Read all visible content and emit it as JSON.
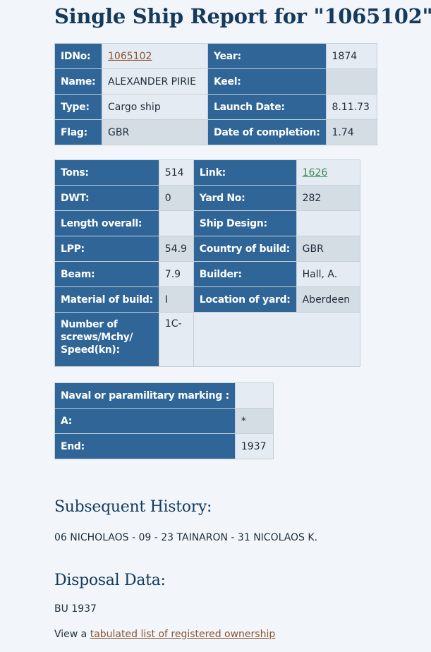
{
  "title": "Single Ship Report for \"1065102\"",
  "table1": {
    "idno_label": "IDNo:",
    "idno_value": "1065102",
    "year_label": "Year:",
    "year_value": "1874",
    "name_label": "Name:",
    "name_value": "ALEXANDER PIRIE",
    "keel_label": "Keel:",
    "keel_value": "",
    "type_label": "Type:",
    "type_value": "Cargo ship",
    "launch_label": "Launch Date:",
    "launch_value": "8.11.73",
    "flag_label": "Flag:",
    "flag_value": "GBR",
    "completion_label": "Date of completion:",
    "completion_value": "1.74"
  },
  "table2": {
    "tons_label": "Tons:",
    "tons_value": "514",
    "link_label": "Link:",
    "link_value": "1626",
    "dwt_label": "DWT:",
    "dwt_value": "0",
    "yard_label": "Yard No:",
    "yard_value": "282",
    "length_label": "Length overall:",
    "length_value": "",
    "design_label": "Ship Design:",
    "design_value": "",
    "lpp_label": "LPP:",
    "lpp_value": "54.9",
    "country_label": "Country of build:",
    "country_value": "GBR",
    "beam_label": "Beam:",
    "beam_value": "7.9",
    "builder_label": "Builder:",
    "builder_value": "Hall, A.",
    "material_label": "Material of build:",
    "material_value": "I",
    "location_label": "Location of yard:",
    "location_value": "Aberdeen",
    "screws_label_1": "Number of",
    "screws_label_2": "screws/Mchy/",
    "screws_label_3": "Speed(kn):",
    "screws_value": "1C-"
  },
  "table3": {
    "naval_label": "Naval or paramilitary marking :",
    "naval_value": "",
    "a_label": "A:",
    "a_value": "*",
    "end_label": "End:",
    "end_value": "1937"
  },
  "history": {
    "heading": "Subsequent History:",
    "text": "06 NICHOLAOS - 09 - 23 TAINARON - 31 NICOLAOS K."
  },
  "disposal": {
    "heading": "Disposal Data:",
    "text": "BU 1937",
    "view_prefix": "View a ",
    "view_link": "tabulated list of registered ownership"
  },
  "colors": {
    "header_cell": "#2f6597",
    "value_cell": "#e5ebf2",
    "value_cell_alt": "#d4dce4",
    "heading_text": "#153a5c",
    "link_brown": "#8a5430",
    "link_green": "#3e8a55"
  }
}
